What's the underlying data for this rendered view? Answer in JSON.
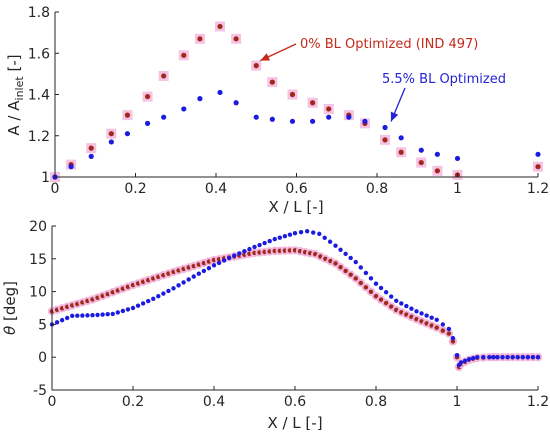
{
  "chart_data": [
    {
      "type": "scatter",
      "xlabel": "X / L [-]",
      "ylabel_main": "A / A",
      "ylabel_sub": "inlet",
      "ylabel_unit": " [-]",
      "xlim": [
        0,
        1.2
      ],
      "ylim": [
        1,
        1.8
      ],
      "xticks": [
        0,
        0.2,
        0.4,
        0.6,
        0.8,
        1,
        1.2
      ],
      "xtick_labels": [
        "0",
        "0.2",
        "0.4",
        "0.6",
        "0.8",
        "1",
        "1.2"
      ],
      "yticks": [
        1,
        1.2,
        1.4,
        1.6,
        1.8
      ],
      "ytick_labels": [
        "1",
        "1.2",
        "1.4",
        "1.6",
        "1.8"
      ],
      "series": [
        {
          "color": "#a0281a",
          "x": [
            0,
            0.04,
            0.09,
            0.14,
            0.18,
            0.23,
            0.27,
            0.32,
            0.36,
            0.41,
            0.45,
            0.5,
            0.54,
            0.59,
            0.64,
            0.68,
            0.73,
            0.77,
            0.82,
            0.86,
            0.91,
            0.95,
            1.0,
            1.2
          ],
          "y": [
            1.0,
            1.06,
            1.14,
            1.21,
            1.3,
            1.39,
            1.49,
            1.59,
            1.67,
            1.73,
            1.67,
            1.54,
            1.46,
            1.4,
            1.36,
            1.33,
            1.3,
            1.26,
            1.18,
            1.12,
            1.07,
            1.03,
            1.01,
            1.05
          ]
        },
        {
          "color": "#1c1ce0",
          "x": [
            0,
            0.04,
            0.09,
            0.14,
            0.18,
            0.23,
            0.27,
            0.32,
            0.36,
            0.41,
            0.45,
            0.5,
            0.54,
            0.59,
            0.64,
            0.68,
            0.73,
            0.77,
            0.82,
            0.86,
            0.91,
            0.95,
            1.0,
            1.2
          ],
          "y": [
            1.0,
            1.05,
            1.1,
            1.17,
            1.21,
            1.26,
            1.29,
            1.33,
            1.38,
            1.41,
            1.36,
            1.29,
            1.28,
            1.27,
            1.27,
            1.29,
            1.29,
            1.27,
            1.24,
            1.19,
            1.13,
            1.11,
            1.09,
            1.11
          ]
        }
      ],
      "annotations": [
        {
          "text": "0% BL Optimized (IND 497)",
          "color": "#c42b1c",
          "at": [
            0.49,
            1.54
          ]
        },
        {
          "text": "5.5% BL Optimized",
          "color": "#2424d6",
          "at": [
            0.82,
            1.24
          ]
        }
      ]
    },
    {
      "type": "scatter",
      "xlabel": "X / L [-]",
      "ylabel_main": "θ",
      "ylabel_unit": " [deg]",
      "xlim": [
        0,
        1.2
      ],
      "ylim": [
        -5,
        20
      ],
      "xticks": [
        0,
        0.2,
        0.4,
        0.6,
        0.8,
        1,
        1.2
      ],
      "xtick_labels": [
        "0",
        "0.2",
        "0.4",
        "0.6",
        "0.8",
        "1",
        "1.2"
      ],
      "yticks": [
        -5,
        0,
        5,
        10,
        15,
        20
      ],
      "ytick_labels": [
        "-5",
        "0",
        "5",
        "10",
        "15",
        "20"
      ],
      "series": [
        {
          "color": "#a0281a",
          "x": [
            0,
            0.1,
            0.2,
            0.3,
            0.4,
            0.5,
            0.55,
            0.6,
            0.65,
            0.7,
            0.75,
            0.8,
            0.85,
            0.9,
            0.95,
            0.98,
            0.99,
            1.0,
            1.005,
            1.01,
            1.03,
            1.05,
            1.08,
            1.1,
            1.15,
            1.2
          ],
          "y": [
            7.0,
            8.8,
            11.0,
            13.0,
            14.8,
            15.9,
            16.2,
            16.3,
            15.7,
            14.3,
            12.0,
            9.3,
            7.2,
            5.8,
            4.5,
            3.6,
            2.4,
            0.0,
            -1.5,
            -1.0,
            -0.4,
            -0.1,
            0.0,
            0.0,
            0.0,
            0.0
          ]
        },
        {
          "color": "#1c1ce0",
          "x": [
            0,
            0.05,
            0.1,
            0.15,
            0.2,
            0.25,
            0.3,
            0.35,
            0.4,
            0.45,
            0.5,
            0.55,
            0.6,
            0.63,
            0.66,
            0.7,
            0.75,
            0.8,
            0.85,
            0.9,
            0.95,
            0.98,
            0.99,
            1.0,
            1.005,
            1.01,
            1.03,
            1.05,
            1.08,
            1.1,
            1.15,
            1.2
          ],
          "y": [
            5.0,
            6.3,
            6.4,
            6.6,
            7.5,
            8.9,
            10.5,
            12.3,
            14.0,
            15.5,
            16.8,
            18.0,
            18.9,
            19.2,
            18.8,
            17.0,
            14.5,
            11.2,
            8.6,
            7.0,
            5.7,
            4.3,
            2.9,
            0.3,
            -1.2,
            -0.8,
            -0.3,
            0.0,
            0.0,
            0.0,
            0.0,
            0.0
          ]
        }
      ]
    }
  ]
}
